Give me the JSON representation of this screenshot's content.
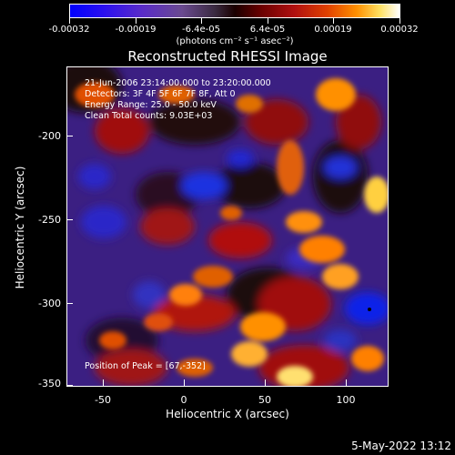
{
  "colorbar": {
    "tick_labels": [
      "-0.00032",
      "-0.00019",
      "-6.4e-05",
      "6.4e-05",
      "0.00019",
      "0.00032"
    ],
    "unit_label": "(photons cm⁻² s⁻¹ asec⁻²)"
  },
  "title": "Reconstructed RHESSI Image",
  "annotations": {
    "time_range": "21-Jun-2006 23:14:00.000 to 23:20:00.000",
    "detectors": "Detectors: 3F 4F 5F 6F 7F 8F, Att 0",
    "energy_range": "Energy Range: 25.0 - 50.0 keV",
    "clean_counts": "Clean     Total counts: 9.03E+03",
    "peak_position": "Position of Peak = [67,-352]"
  },
  "axes": {
    "x_label": "Heliocentric X (arcsec)",
    "y_label": "Heliocentric Y (arcsec)",
    "x_ticks": [
      "-50",
      "0",
      "50",
      "100"
    ],
    "y_ticks": [
      "-200",
      "-250",
      "-300",
      "-350"
    ]
  },
  "timestamp": "5-May-2022 13:12",
  "chart_data": {
    "type": "heatmap",
    "title": "Reconstructed RHESSI Image",
    "xlabel": "Heliocentric X (arcsec)",
    "ylabel": "Heliocentric Y (arcsec)",
    "xlim": [
      -70,
      122
    ],
    "ylim": [
      -352,
      -160
    ],
    "colorbar_range": [
      -0.00032,
      0.00032
    ],
    "peak_position": [
      67,
      -352
    ]
  }
}
